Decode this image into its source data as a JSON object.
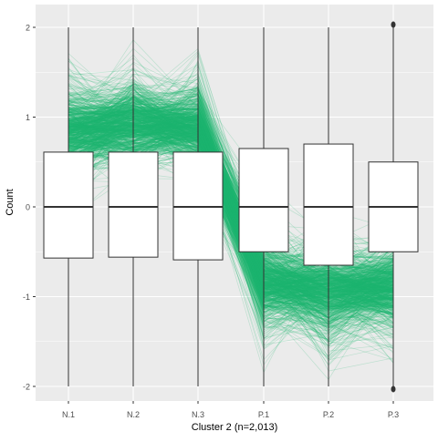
{
  "chart_data": {
    "type": "parallel-coordinates-boxplot",
    "title": "",
    "xlabel": "Cluster 2 (n=2,013)",
    "ylabel": "Count",
    "categories": [
      "N.1",
      "N.2",
      "N.3",
      "P.1",
      "P.2",
      "P.3"
    ],
    "ylim": [
      -2.05,
      2.05
    ],
    "yticks": [
      2,
      1,
      0,
      -1,
      -2
    ],
    "grid": true,
    "legend": "none",
    "boxplots": [
      {
        "category": "N.1",
        "min": -2.0,
        "q1": -0.57,
        "median": 0.0,
        "q3": 0.61,
        "max": 2.0
      },
      {
        "category": "N.2",
        "min": -2.0,
        "q1": -0.56,
        "median": 0.0,
        "q3": 0.61,
        "max": 2.0
      },
      {
        "category": "N.3",
        "min": -2.0,
        "q1": -0.59,
        "median": 0.0,
        "q3": 0.61,
        "max": 2.0
      },
      {
        "category": "P.1",
        "min": -2.0,
        "q1": -0.5,
        "median": 0.0,
        "q3": 0.65,
        "max": 2.0
      },
      {
        "category": "P.2",
        "min": -2.0,
        "q1": -0.65,
        "median": 0.0,
        "q3": 0.7,
        "max": 2.0
      },
      {
        "category": "P.3",
        "min": -2.0,
        "q1": -0.5,
        "median": 0.0,
        "q3": 0.5,
        "max": 2.0,
        "outliers": [
          2.03,
          -2.03
        ]
      }
    ],
    "series": [
      {
        "values": [
          0.85,
          0.95,
          0.9,
          -0.85,
          -0.95,
          -0.9
        ]
      }
    ],
    "colors": {
      "lines": "#1db56f",
      "panel": "#ebebeb",
      "grid": "#ffffff",
      "box_fill": "#ffffff",
      "box_stroke": "#333333",
      "text": "#4d4d4d",
      "axis_title": "#000000"
    }
  }
}
